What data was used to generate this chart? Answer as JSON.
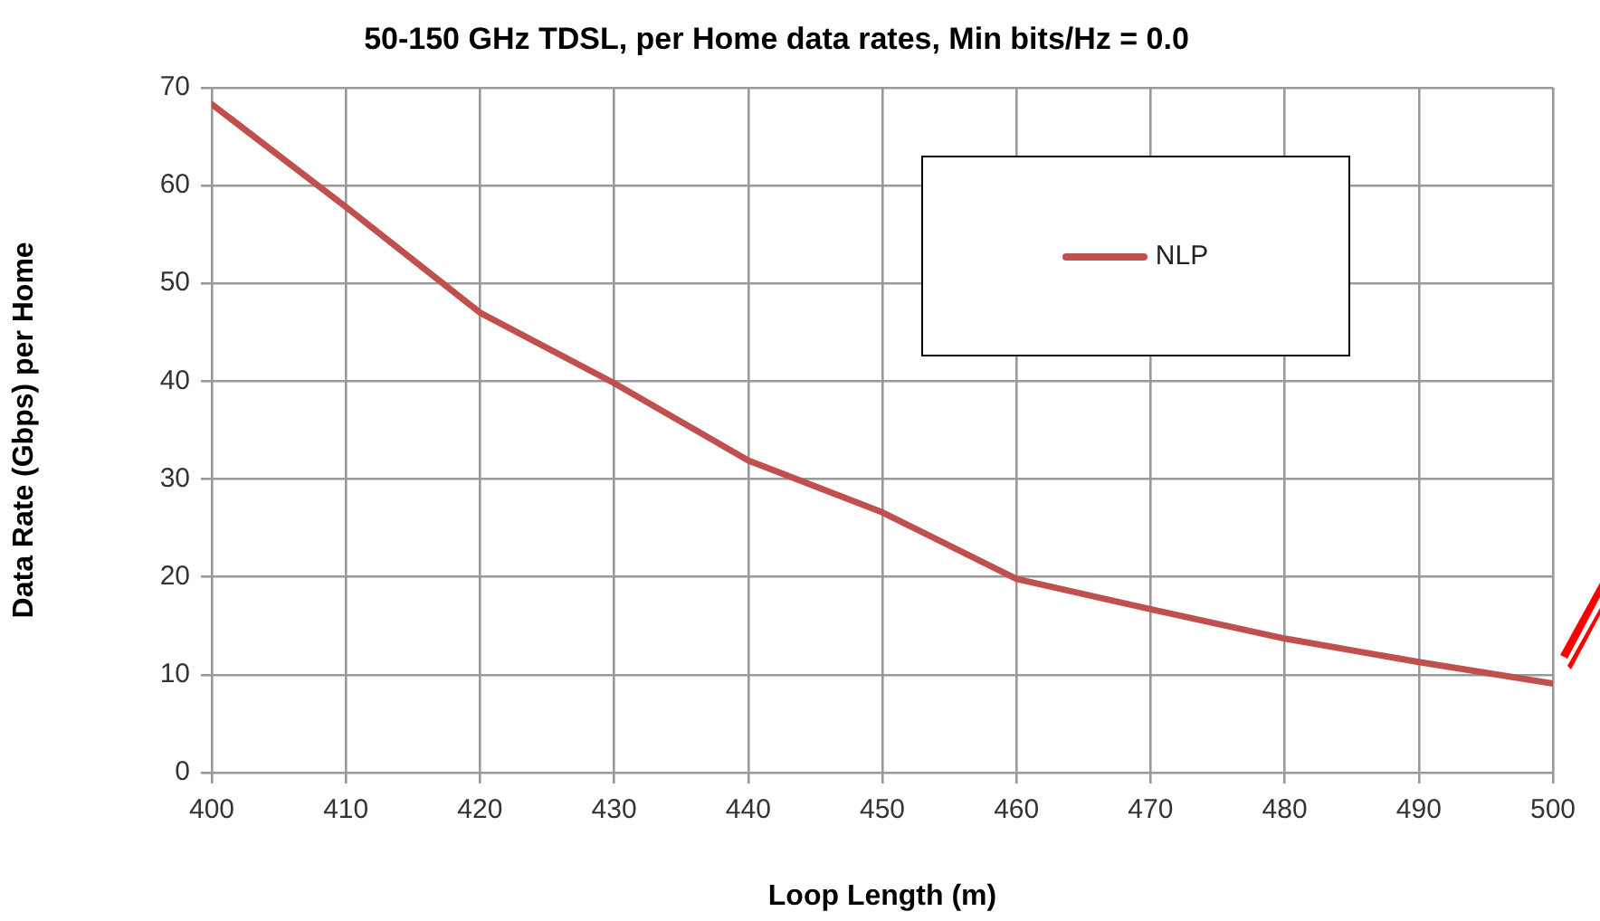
{
  "chart_data": {
    "type": "line",
    "title": "50-150 GHz TDSL, per Home data rates, Min bits/Hz = 0.0",
    "xlabel": "Loop Length (m)",
    "ylabel": "Data Rate (Gbps) per Home",
    "x": [
      400,
      410,
      420,
      430,
      440,
      450,
      460,
      470,
      480,
      490,
      500
    ],
    "series": [
      {
        "name": "NLP",
        "color": "#c0504d",
        "values": [
          68.3,
          57.8,
          47,
          39.8,
          31.9,
          26.6,
          19.8,
          16.7,
          13.7,
          11.3,
          9.1
        ]
      }
    ],
    "xlim": [
      400,
      500
    ],
    "xticks": [
      400,
      410,
      420,
      430,
      440,
      450,
      460,
      470,
      480,
      490,
      500
    ],
    "ylim": [
      0,
      70
    ],
    "yticks": [
      0,
      10,
      20,
      30,
      40,
      50,
      60,
      70
    ],
    "grid": true,
    "legend": "top right",
    "marker": "none",
    "line_style": "solid"
  }
}
